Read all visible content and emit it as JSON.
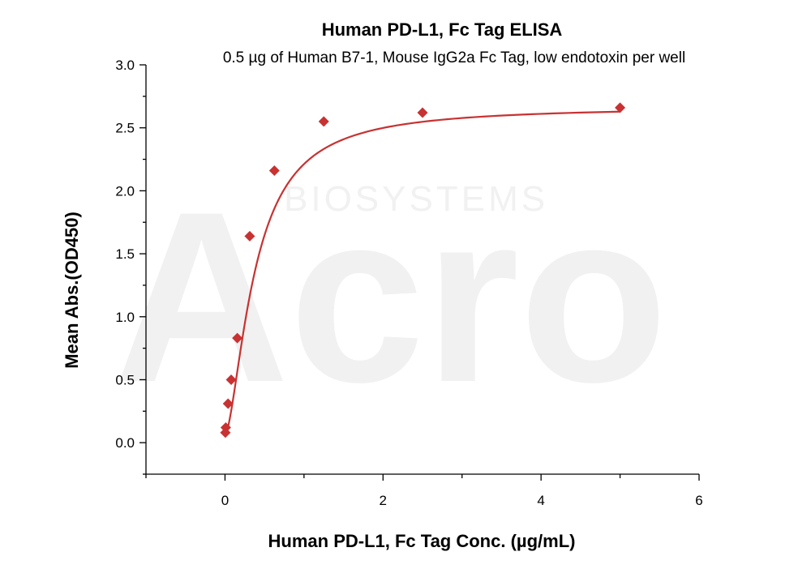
{
  "chart_data": {
    "type": "scatter",
    "title": "Human PD-L1, Fc Tag ELISA",
    "subtitle": "0.5 µg of Human B7-1, Mouse IgG2a Fc Tag, low endotoxin per well",
    "xlabel": "Human PD-L1, Fc Tag Conc. (µg/mL)",
    "ylabel": "Mean Abs.(OD450)",
    "xlim": [
      -1,
      6
    ],
    "ylim": [
      -0.25,
      3.0
    ],
    "xticks": [
      0,
      2,
      4,
      6
    ],
    "yticks": [
      0.0,
      0.5,
      1.0,
      1.5,
      2.0,
      2.5,
      3.0
    ],
    "xtick_labels": [
      "0",
      "2",
      "4",
      "6"
    ],
    "ytick_labels": [
      "0.0",
      "0.5",
      "1.0",
      "1.5",
      "2.0",
      "2.5",
      "3.0"
    ],
    "grid": false,
    "color": "#c83232",
    "series": [
      {
        "x": [
          0.005,
          0.01,
          0.039,
          0.078,
          0.156,
          0.313,
          0.625,
          1.25,
          2.5,
          5.0
        ],
        "y": [
          0.08,
          0.12,
          0.31,
          0.5,
          0.83,
          1.64,
          2.16,
          2.55,
          2.62,
          2.66
        ]
      }
    ],
    "fit_curve": {
      "type": "4PL",
      "bottom": 0.06,
      "top": 2.67,
      "ec50": 0.38,
      "hill": 1.6
    }
  },
  "watermark": {
    "line1": "Acro",
    "line2": "BIOSYSTEMS"
  }
}
